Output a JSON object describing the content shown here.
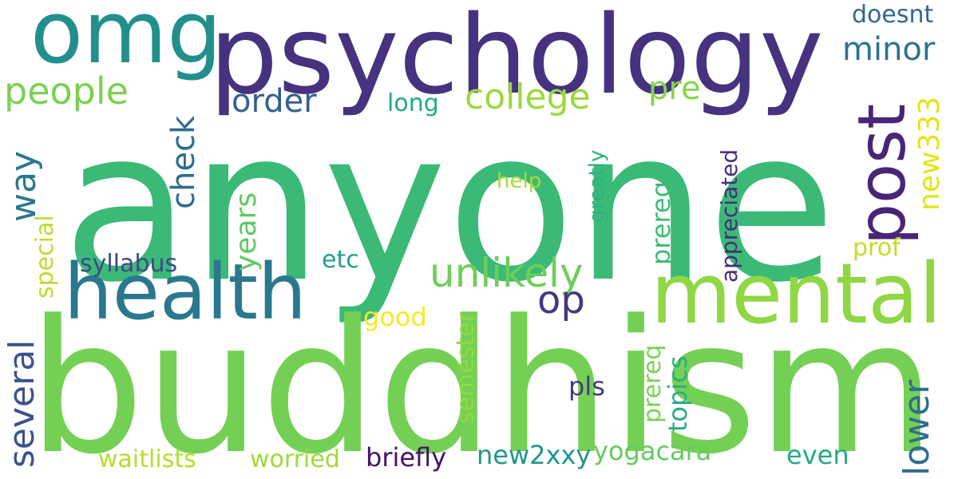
{
  "words": [
    {
      "text": "anyone",
      "color": "#3aba76"
    },
    {
      "text": "buddhism",
      "color": "#74d055"
    },
    {
      "text": "psychology",
      "color": "#46327e"
    },
    {
      "text": "mental",
      "color": "#8fd744"
    },
    {
      "text": "health",
      "color": "#2a788e"
    },
    {
      "text": "omg",
      "color": "#21908d"
    },
    {
      "text": "post",
      "color": "#482576"
    },
    {
      "text": "unlikely",
      "color": "#6ece58"
    },
    {
      "text": "college",
      "color": "#9bd93c"
    },
    {
      "text": "people",
      "color": "#7ad151"
    },
    {
      "text": "order",
      "color": "#355f8d"
    },
    {
      "text": "minor",
      "color": "#2c728e"
    },
    {
      "text": "pre",
      "color": "#86d549"
    },
    {
      "text": "op",
      "color": "#443983"
    },
    {
      "text": "check",
      "color": "#2f6c8e"
    },
    {
      "text": "way",
      "color": "#2a788e"
    },
    {
      "text": "several",
      "color": "#3b528b"
    },
    {
      "text": "lower",
      "color": "#2f6c8e"
    },
    {
      "text": "years",
      "color": "#5ec962"
    },
    {
      "text": "new333",
      "color": "#e5e419"
    },
    {
      "text": "doesnt",
      "color": "#31688e"
    },
    {
      "text": "long",
      "color": "#22a884"
    },
    {
      "text": "help",
      "color": "#a5db36"
    },
    {
      "text": "greatly",
      "color": "#2db27d"
    },
    {
      "text": "prereqs",
      "color": "#3dbc74"
    },
    {
      "text": "appreciated",
      "color": "#472d7b"
    },
    {
      "text": "prof",
      "color": "#bddf26"
    },
    {
      "text": "special",
      "color": "#b8de29"
    },
    {
      "text": "syllabus",
      "color": "#3e4989"
    },
    {
      "text": "etc",
      "color": "#1fa188"
    },
    {
      "text": "good",
      "color": "#fde725"
    },
    {
      "text": "semester",
      "color": "#95d840"
    },
    {
      "text": "prereq",
      "color": "#7ad151"
    },
    {
      "text": "topics",
      "color": "#26ad81"
    },
    {
      "text": "pls",
      "color": "#443983"
    },
    {
      "text": "waitlists",
      "color": "#b5de2b"
    },
    {
      "text": "worried",
      "color": "#a0da39"
    },
    {
      "text": "briefly",
      "color": "#471164"
    },
    {
      "text": "new2xxy",
      "color": "#1f968b"
    },
    {
      "text": "yogacara",
      "color": "#65cb5e"
    },
    {
      "text": "even",
      "color": "#24aa83"
    }
  ]
}
